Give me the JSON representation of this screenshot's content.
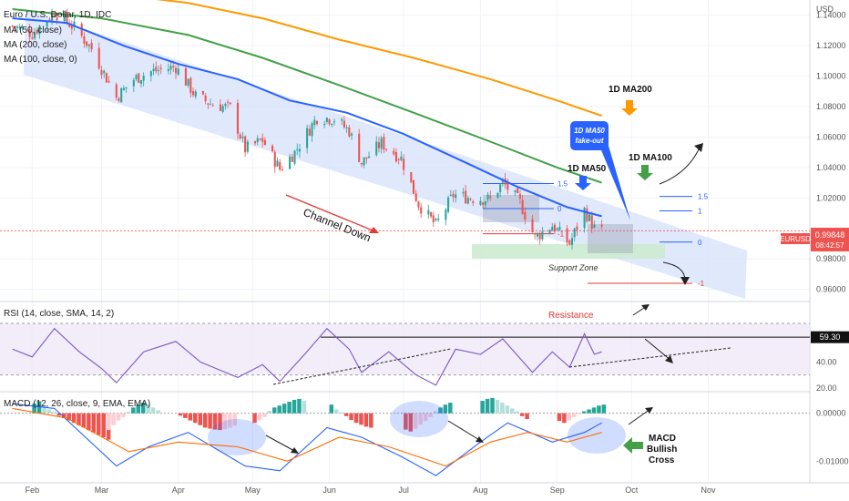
{
  "header": {
    "symbol_title": "Euro / U.S. Dollar, 1D, IDC",
    "ma_legend": [
      "MA (50, close)",
      "MA (200, close)",
      "MA (100, close, 0)"
    ],
    "currency": "USD"
  },
  "price_tag": {
    "symbol": "EURUSD",
    "price": "0.99848",
    "countdown": "08:42:57"
  },
  "colors": {
    "up": "#26a69a",
    "down": "#ef5350",
    "ma50": "#2962ff",
    "ma100": "#43a047",
    "ma200": "#ff9800",
    "channel": "#d6e0fb",
    "rsi": "#7e57c2",
    "macd": "#2962ff",
    "signal": "#ff6d00",
    "support": "#cdebd0"
  },
  "annotations": {
    "channel": "Channel Down",
    "support": "Support Zone",
    "ma200": "1D MA200",
    "ma100": "1D MA100",
    "ma50": "1D MA50",
    "fakeout_1": "1D MA50",
    "fakeout_2": "fake-out",
    "fib_left": [
      "1.5",
      "0",
      "-1"
    ],
    "fib_right": [
      "1.5",
      "1",
      "0",
      "-1"
    ],
    "resistance": "Resistance",
    "macd_cross": [
      "MACD",
      "Bullish",
      "Cross"
    ]
  },
  "rsi_panel": {
    "title": "RSI (14, close, SMA, 14, 2)",
    "tag": "59.30"
  },
  "macd_panel": {
    "title": "MACD (12, 26, close, 9, EMA, EMA)"
  },
  "chart_data": {
    "type": "candlestick",
    "title": "Euro / U.S. Dollar, 1D, IDC",
    "months": [
      "Feb",
      "Mar",
      "Apr",
      "May",
      "Jun",
      "Jul",
      "Aug",
      "Sep",
      "Oct",
      "Nov"
    ],
    "price_axis": {
      "ticks": [
        "1.14000",
        "1.12000",
        "1.10000",
        "1.08000",
        "1.06000",
        "1.04000",
        "1.02000",
        "0.98000",
        "0.96000"
      ],
      "range": [
        0.952,
        1.15
      ]
    },
    "close_path": [
      {
        "date": "2022-01-24",
        "value": 1.133
      },
      {
        "date": "2022-02-01",
        "value": 1.128
      },
      {
        "date": "2022-02-10",
        "value": 1.142
      },
      {
        "date": "2022-02-18",
        "value": 1.132
      },
      {
        "date": "2022-02-25",
        "value": 1.118
      },
      {
        "date": "2022-03-07",
        "value": 1.086
      },
      {
        "date": "2022-03-14",
        "value": 1.098
      },
      {
        "date": "2022-03-21",
        "value": 1.103
      },
      {
        "date": "2022-03-31",
        "value": 1.106
      },
      {
        "date": "2022-04-08",
        "value": 1.087
      },
      {
        "date": "2022-04-14",
        "value": 1.082
      },
      {
        "date": "2022-04-22",
        "value": 1.079
      },
      {
        "date": "2022-04-28",
        "value": 1.052
      },
      {
        "date": "2022-05-05",
        "value": 1.058
      },
      {
        "date": "2022-05-12",
        "value": 1.039
      },
      {
        "date": "2022-05-18",
        "value": 1.05
      },
      {
        "date": "2022-05-27",
        "value": 1.073
      },
      {
        "date": "2022-06-03",
        "value": 1.072
      },
      {
        "date": "2022-06-09",
        "value": 1.064
      },
      {
        "date": "2022-06-14",
        "value": 1.043
      },
      {
        "date": "2022-06-22",
        "value": 1.056
      },
      {
        "date": "2022-06-30",
        "value": 1.046
      },
      {
        "date": "2022-07-07",
        "value": 1.016
      },
      {
        "date": "2022-07-14",
        "value": 1.002
      },
      {
        "date": "2022-07-21",
        "value": 1.022
      },
      {
        "date": "2022-07-28",
        "value": 1.02
      },
      {
        "date": "2022-08-05",
        "value": 1.019
      },
      {
        "date": "2022-08-10",
        "value": 1.03
      },
      {
        "date": "2022-08-17",
        "value": 1.017
      },
      {
        "date": "2022-08-23",
        "value": 0.994
      },
      {
        "date": "2022-08-30",
        "value": 1.002
      },
      {
        "date": "2022-09-06",
        "value": 0.99
      },
      {
        "date": "2022-09-12",
        "value": 1.012
      },
      {
        "date": "2022-09-16",
        "value": 1.0
      },
      {
        "date": "2022-09-19",
        "value": 0.998
      }
    ],
    "ma50": [
      {
        "date": "2022-01-24",
        "value": 1.138
      },
      {
        "date": "2022-02-15",
        "value": 1.135
      },
      {
        "date": "2022-03-10",
        "value": 1.12
      },
      {
        "date": "2022-04-01",
        "value": 1.108
      },
      {
        "date": "2022-04-25",
        "value": 1.098
      },
      {
        "date": "2022-05-16",
        "value": 1.084
      },
      {
        "date": "2022-06-08",
        "value": 1.076
      },
      {
        "date": "2022-07-01",
        "value": 1.062
      },
      {
        "date": "2022-07-25",
        "value": 1.044
      },
      {
        "date": "2022-08-15",
        "value": 1.028
      },
      {
        "date": "2022-09-05",
        "value": 1.014
      },
      {
        "date": "2022-09-19",
        "value": 1.008
      }
    ],
    "ma100": [
      {
        "date": "2022-01-24",
        "value": 1.144
      },
      {
        "date": "2022-03-01",
        "value": 1.138
      },
      {
        "date": "2022-04-05",
        "value": 1.127
      },
      {
        "date": "2022-05-05",
        "value": 1.112
      },
      {
        "date": "2022-06-05",
        "value": 1.094
      },
      {
        "date": "2022-07-05",
        "value": 1.076
      },
      {
        "date": "2022-08-05",
        "value": 1.057
      },
      {
        "date": "2022-09-01",
        "value": 1.04
      },
      {
        "date": "2022-09-19",
        "value": 1.03
      }
    ],
    "ma200": [
      {
        "date": "2022-01-24",
        "value": 1.158
      },
      {
        "date": "2022-03-01",
        "value": 1.155
      },
      {
        "date": "2022-04-05",
        "value": 1.148
      },
      {
        "date": "2022-05-05",
        "value": 1.138
      },
      {
        "date": "2022-06-05",
        "value": 1.124
      },
      {
        "date": "2022-07-05",
        "value": 1.112
      },
      {
        "date": "2022-08-05",
        "value": 1.098
      },
      {
        "date": "2022-09-01",
        "value": 1.084
      },
      {
        "date": "2022-09-19",
        "value": 1.074
      }
    ],
    "last_price": 0.99848,
    "rsi_axis": {
      "ticks": [
        "40.00",
        "20.00"
      ],
      "range": [
        17,
        87
      ],
      "band": [
        30,
        70
      ],
      "resistance": 59.3
    },
    "rsi": [
      {
        "date": "2022-01-24",
        "value": 50
      },
      {
        "date": "2022-02-01",
        "value": 44
      },
      {
        "date": "2022-02-10",
        "value": 66
      },
      {
        "date": "2022-02-20",
        "value": 48
      },
      {
        "date": "2022-03-01",
        "value": 35
      },
      {
        "date": "2022-03-07",
        "value": 24
      },
      {
        "date": "2022-03-18",
        "value": 48
      },
      {
        "date": "2022-03-31",
        "value": 56
      },
      {
        "date": "2022-04-10",
        "value": 40
      },
      {
        "date": "2022-04-25",
        "value": 28
      },
      {
        "date": "2022-05-05",
        "value": 38
      },
      {
        "date": "2022-05-12",
        "value": 25
      },
      {
        "date": "2022-05-22",
        "value": 46
      },
      {
        "date": "2022-05-31",
        "value": 66
      },
      {
        "date": "2022-06-09",
        "value": 50
      },
      {
        "date": "2022-06-14",
        "value": 32
      },
      {
        "date": "2022-06-25",
        "value": 48
      },
      {
        "date": "2022-07-06",
        "value": 30
      },
      {
        "date": "2022-07-14",
        "value": 22
      },
      {
        "date": "2022-07-22",
        "value": 50
      },
      {
        "date": "2022-08-01",
        "value": 46
      },
      {
        "date": "2022-08-10",
        "value": 58
      },
      {
        "date": "2022-08-22",
        "value": 32
      },
      {
        "date": "2022-08-30",
        "value": 48
      },
      {
        "date": "2022-09-06",
        "value": 36
      },
      {
        "date": "2022-09-12",
        "value": 62
      },
      {
        "date": "2022-09-16",
        "value": 46
      },
      {
        "date": "2022-09-19",
        "value": 48
      }
    ],
    "macd_axis": {
      "ticks": [
        "0.00000",
        "-0.01000"
      ],
      "range": [
        -0.0145,
        0.0045
      ]
    },
    "macd_hist_months": [
      {
        "month": "Feb",
        "values": [
          0.002,
          0.0025,
          0.0015,
          0.0008,
          0.0003,
          -0.0005,
          -0.001,
          -0.0015,
          -0.002,
          -0.0025,
          -0.003,
          -0.0035,
          -0.004,
          -0.0045,
          -0.005,
          -0.0055
        ]
      },
      {
        "month": "Mar",
        "values": [
          -0.0045,
          -0.0035,
          -0.0025,
          -0.0015,
          -0.0008,
          0.0003,
          0.0012,
          0.0018,
          0.0022,
          0.0018,
          0.0012,
          0.0006
        ]
      },
      {
        "month": "Apr",
        "values": [
          -0.0005,
          -0.001,
          -0.0015,
          -0.002,
          -0.0025,
          -0.003,
          -0.0032,
          -0.0034,
          -0.0035,
          -0.0033,
          -0.003,
          -0.0026
        ]
      },
      {
        "month": "May",
        "values": [
          -0.002,
          -0.0014,
          -0.0008,
          0.0005,
          0.0012,
          0.0016,
          0.002,
          0.0024,
          0.0028,
          0.003,
          0.0026
        ]
      },
      {
        "month": "Jun",
        "values": [
          0.0018,
          0.0008,
          0.0002,
          -0.0006,
          -0.0014,
          -0.002,
          -0.0024,
          -0.0028,
          -0.003
        ]
      },
      {
        "month": "Jul",
        "values": [
          -0.0034,
          -0.0038,
          -0.0032,
          -0.0024,
          -0.0016,
          -0.0008,
          0.0004,
          0.0012,
          0.0018,
          0.0022
        ]
      },
      {
        "month": "Aug",
        "values": [
          0.0026,
          0.003,
          0.0032,
          0.0028,
          0.0022,
          0.0016,
          0.001,
          0.0004,
          -0.0006,
          -0.0012
        ]
      },
      {
        "month": "Sep",
        "values": [
          -0.0016,
          -0.002,
          -0.0015,
          -0.0008,
          -0.0002,
          0.0004,
          0.0008,
          0.0012,
          0.0016,
          0.0018
        ]
      }
    ],
    "macd_line": [
      {
        "date": "2022-01-24",
        "value": 0.002
      },
      {
        "date": "2022-02-10",
        "value": 0.001
      },
      {
        "date": "2022-03-07",
        "value": -0.011
      },
      {
        "date": "2022-03-20",
        "value": -0.007
      },
      {
        "date": "2022-04-05",
        "value": -0.004
      },
      {
        "date": "2022-04-28",
        "value": -0.011
      },
      {
        "date": "2022-05-12",
        "value": -0.012
      },
      {
        "date": "2022-05-31",
        "value": -0.003
      },
      {
        "date": "2022-06-14",
        "value": -0.005
      },
      {
        "date": "2022-06-30",
        "value": -0.009
      },
      {
        "date": "2022-07-14",
        "value": -0.013
      },
      {
        "date": "2022-08-01",
        "value": -0.006
      },
      {
        "date": "2022-08-12",
        "value": -0.002
      },
      {
        "date": "2022-08-30",
        "value": -0.006
      },
      {
        "date": "2022-09-12",
        "value": -0.004
      },
      {
        "date": "2022-09-19",
        "value": -0.002
      }
    ],
    "signal_line": [
      {
        "date": "2022-01-24",
        "value": 0.001
      },
      {
        "date": "2022-02-15",
        "value": -0.001
      },
      {
        "date": "2022-03-12",
        "value": -0.008
      },
      {
        "date": "2022-04-01",
        "value": -0.006
      },
      {
        "date": "2022-04-25",
        "value": -0.007
      },
      {
        "date": "2022-05-15",
        "value": -0.01
      },
      {
        "date": "2022-06-05",
        "value": -0.005
      },
      {
        "date": "2022-06-25",
        "value": -0.007
      },
      {
        "date": "2022-07-18",
        "value": -0.011
      },
      {
        "date": "2022-08-05",
        "value": -0.006
      },
      {
        "date": "2022-08-20",
        "value": -0.004
      },
      {
        "date": "2022-09-05",
        "value": -0.006
      },
      {
        "date": "2022-09-19",
        "value": -0.004
      }
    ]
  }
}
